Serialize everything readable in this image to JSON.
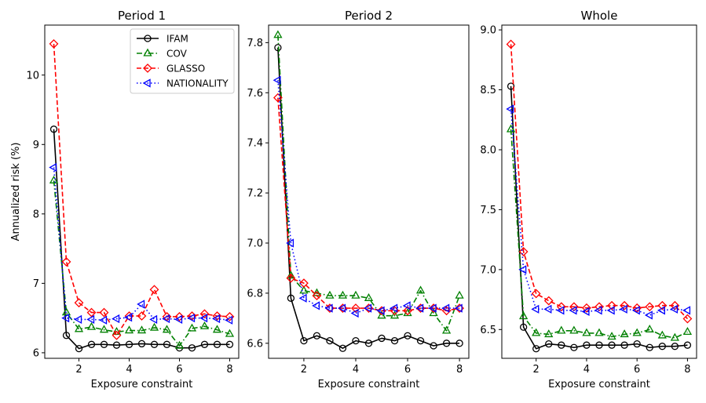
{
  "chart_data": [
    {
      "type": "line",
      "title": "Period 1",
      "xlabel": "Exposure constraint",
      "ylabel": "Annualized risk (%)",
      "xlim": [
        0.64,
        8.36
      ],
      "ylim": [
        5.92,
        10.72
      ],
      "x": [
        1,
        1.5,
        2,
        2.5,
        3,
        3.5,
        4,
        4.5,
        5,
        5.5,
        6,
        6.5,
        7,
        7.5,
        8
      ],
      "xticks": [
        2,
        4,
        6,
        8
      ],
      "xtick_labels": [
        "2",
        "4",
        "6",
        "8"
      ],
      "yticks": [
        6,
        7,
        8,
        9,
        10
      ],
      "ytick_labels": [
        "6",
        "7",
        "8",
        "9",
        "10"
      ],
      "legend": {
        "placement": "top-right"
      },
      "series": [
        {
          "name": "IFAM",
          "color": "#000000",
          "dash": "solid",
          "marker": "circle",
          "values": [
            9.22,
            6.25,
            6.06,
            6.12,
            6.12,
            6.11,
            6.12,
            6.13,
            6.12,
            6.12,
            6.07,
            6.07,
            6.12,
            6.12,
            6.12
          ]
        },
        {
          "name": "COV",
          "color": "#008000",
          "dash": "dashdot",
          "marker": "triangle-up",
          "values": [
            8.48,
            6.58,
            6.34,
            6.37,
            6.33,
            6.3,
            6.32,
            6.32,
            6.36,
            6.33,
            6.1,
            6.35,
            6.38,
            6.33,
            6.27
          ]
        },
        {
          "name": "GLASSO",
          "color": "#ff0000",
          "dash": "dashed",
          "marker": "diamond",
          "values": [
            10.45,
            7.31,
            6.72,
            6.58,
            6.58,
            6.25,
            6.53,
            6.53,
            6.91,
            6.52,
            6.52,
            6.53,
            6.56,
            6.53,
            6.52
          ]
        },
        {
          "name": "NATIONALITY",
          "color": "#0000ff",
          "dash": "dotted",
          "marker": "triangle-left",
          "values": [
            8.67,
            6.5,
            6.48,
            6.48,
            6.47,
            6.49,
            6.51,
            6.7,
            6.48,
            6.49,
            6.48,
            6.5,
            6.5,
            6.49,
            6.47
          ]
        }
      ]
    },
    {
      "type": "line",
      "title": "Period 2",
      "xlabel": "Exposure constraint",
      "ylabel": "",
      "xlim": [
        0.64,
        8.36
      ],
      "ylim": [
        6.54,
        7.87
      ],
      "x": [
        1,
        1.5,
        2,
        2.5,
        3,
        3.5,
        4,
        4.5,
        5,
        5.5,
        6,
        6.5,
        7,
        7.5,
        8
      ],
      "xticks": [
        2,
        4,
        6,
        8
      ],
      "xtick_labels": [
        "2",
        "4",
        "6",
        "8"
      ],
      "yticks": [
        6.6,
        6.8,
        7.0,
        7.2,
        7.4,
        7.6,
        7.8
      ],
      "ytick_labels": [
        "6.6",
        "6.8",
        "7.0",
        "7.2",
        "7.4",
        "7.6",
        "7.8"
      ],
      "series": [
        {
          "name": "IFAM",
          "color": "#000000",
          "dash": "solid",
          "marker": "circle",
          "values": [
            7.78,
            6.78,
            6.61,
            6.63,
            6.61,
            6.58,
            6.61,
            6.6,
            6.62,
            6.61,
            6.63,
            6.61,
            6.59,
            6.6,
            6.6
          ]
        },
        {
          "name": "COV",
          "color": "#008000",
          "dash": "dashdot",
          "marker": "triangle-up",
          "values": [
            7.83,
            6.87,
            6.81,
            6.8,
            6.79,
            6.79,
            6.79,
            6.78,
            6.71,
            6.71,
            6.72,
            6.81,
            6.72,
            6.65,
            6.79
          ]
        },
        {
          "name": "GLASSO",
          "color": "#ff0000",
          "dash": "dashed",
          "marker": "diamond",
          "values": [
            7.58,
            6.86,
            6.84,
            6.79,
            6.74,
            6.74,
            6.74,
            6.74,
            6.73,
            6.73,
            6.73,
            6.74,
            6.74,
            6.73,
            6.74
          ]
        },
        {
          "name": "NATIONALITY",
          "color": "#0000ff",
          "dash": "dotted",
          "marker": "triangle-left",
          "values": [
            7.65,
            7.0,
            6.78,
            6.75,
            6.74,
            6.74,
            6.72,
            6.74,
            6.73,
            6.74,
            6.75,
            6.74,
            6.74,
            6.74,
            6.74
          ]
        }
      ]
    },
    {
      "type": "line",
      "title": "Whole",
      "xlabel": "Exposure constraint",
      "ylabel": "",
      "xlim": [
        0.64,
        8.36
      ],
      "ylim": [
        6.26,
        9.04
      ],
      "x": [
        1,
        1.5,
        2,
        2.5,
        3,
        3.5,
        4,
        4.5,
        5,
        5.5,
        6,
        6.5,
        7,
        7.5,
        8
      ],
      "xticks": [
        2,
        4,
        6,
        8
      ],
      "xtick_labels": [
        "2",
        "4",
        "6",
        "8"
      ],
      "yticks": [
        6.5,
        7.0,
        7.5,
        8.0,
        8.5,
        9.0
      ],
      "ytick_labels": [
        "6.5",
        "7.0",
        "7.5",
        "8.0",
        "8.5",
        "9.0"
      ],
      "series": [
        {
          "name": "IFAM",
          "color": "#000000",
          "dash": "solid",
          "marker": "circle",
          "values": [
            8.53,
            6.52,
            6.34,
            6.38,
            6.37,
            6.35,
            6.37,
            6.37,
            6.37,
            6.37,
            6.38,
            6.35,
            6.36,
            6.36,
            6.37
          ]
        },
        {
          "name": "COV",
          "color": "#008000",
          "dash": "dashdot",
          "marker": "triangle-up",
          "values": [
            8.17,
            6.61,
            6.47,
            6.46,
            6.49,
            6.49,
            6.47,
            6.47,
            6.44,
            6.46,
            6.47,
            6.5,
            6.45,
            6.43,
            6.48
          ]
        },
        {
          "name": "GLASSO",
          "color": "#ff0000",
          "dash": "dashed",
          "marker": "diamond",
          "values": [
            8.88,
            7.15,
            6.8,
            6.74,
            6.69,
            6.69,
            6.68,
            6.69,
            6.7,
            6.7,
            6.68,
            6.69,
            6.7,
            6.7,
            6.59
          ]
        },
        {
          "name": "NATIONALITY",
          "color": "#0000ff",
          "dash": "dotted",
          "marker": "triangle-left",
          "values": [
            8.34,
            7.0,
            6.67,
            6.67,
            6.66,
            6.66,
            6.65,
            6.66,
            6.66,
            6.67,
            6.66,
            6.62,
            6.66,
            6.67,
            6.66
          ]
        }
      ]
    }
  ]
}
